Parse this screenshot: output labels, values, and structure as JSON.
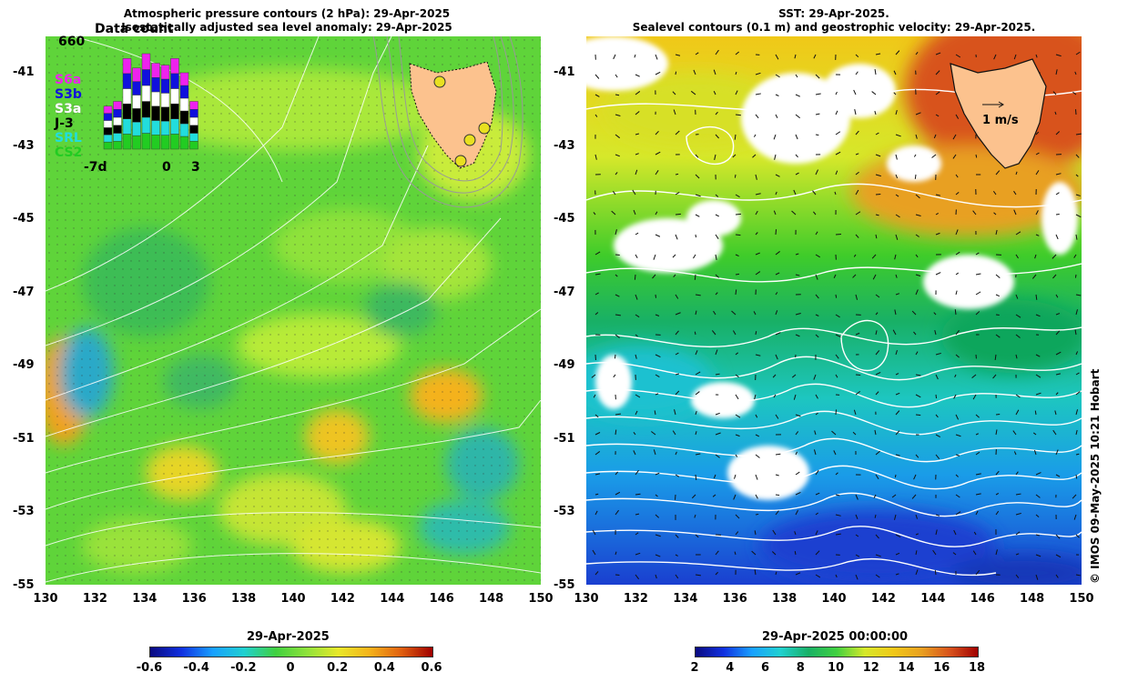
{
  "left_panel": {
    "title_line1": "Atmospheric pressure contours (2 hPa): 29-Apr-2025",
    "title_line2": "Isostatically adjusted sea level anomaly: 29-Apr-2025",
    "inset": {
      "title": "Data count",
      "max_count": "660",
      "satellites": [
        {
          "name": "S6a",
          "color": "#ee22ee"
        },
        {
          "name": "S3b",
          "color": "#1010dd"
        },
        {
          "name": "S3a",
          "color": "#ffffff"
        },
        {
          "name": "J-3",
          "color": "#000000"
        },
        {
          "name": "SRL",
          "color": "#22dddd"
        },
        {
          "name": "CS2",
          "color": "#22cc22"
        }
      ],
      "x_start": "-7d",
      "x_zero": "0",
      "x_end": "3"
    },
    "colorbar": {
      "date": "29-Apr-2025",
      "ticks": [
        "-0.6",
        "-0.4",
        "-0.2",
        "0",
        "0.2",
        "0.4",
        "0.6"
      ]
    }
  },
  "right_panel": {
    "title_line1": "SST: 29-Apr-2025.",
    "title_line2": "Sealevel contours (0.1 m) and geostrophic velocity: 29-Apr-2025.",
    "velocity_scale": "1 m/s",
    "colorbar": {
      "date": "29-Apr-2025 00:00:00",
      "ticks": [
        "2",
        "4",
        "6",
        "8",
        "10",
        "12",
        "14",
        "16",
        "18"
      ]
    }
  },
  "axes": {
    "lat_ticks": [
      "-41",
      "-43",
      "-45",
      "-47",
      "-49",
      "-51",
      "-53",
      "-55"
    ],
    "lon_ticks": [
      "130",
      "132",
      "134",
      "136",
      "138",
      "140",
      "142",
      "144",
      "146",
      "148",
      "150"
    ]
  },
  "credit": "© IMOS 09-May-2025 10:21 Hobart",
  "colors": {
    "sla_base": "#5fd43a",
    "land": "#fcc28e",
    "sst_warm": "#d8531c",
    "sst_cold": "#1a3fd0"
  }
}
